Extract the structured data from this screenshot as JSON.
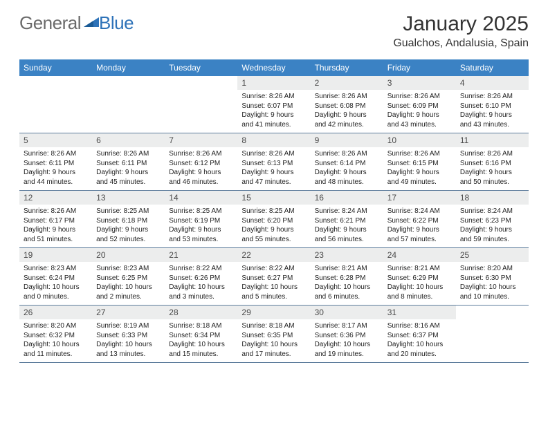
{
  "logo": {
    "word1": "General",
    "word2": "Blue"
  },
  "title": "January 2025",
  "location": "Gualchos, Andalusia, Spain",
  "colors": {
    "header_bar": "#3b82c4",
    "logo_gray": "#6a6a6a",
    "logo_blue": "#2d72b8",
    "daynum_bg": "#eceded",
    "week_border": "#5a7a9a"
  },
  "weekdays": [
    "Sunday",
    "Monday",
    "Tuesday",
    "Wednesday",
    "Thursday",
    "Friday",
    "Saturday"
  ],
  "layout": {
    "cols": 7,
    "rows": 5,
    "first_weekday_index": 3,
    "days_in_month": 31
  },
  "days": {
    "1": {
      "sunrise": "8:26 AM",
      "sunset": "6:07 PM",
      "daylight": "9 hours and 41 minutes."
    },
    "2": {
      "sunrise": "8:26 AM",
      "sunset": "6:08 PM",
      "daylight": "9 hours and 42 minutes."
    },
    "3": {
      "sunrise": "8:26 AM",
      "sunset": "6:09 PM",
      "daylight": "9 hours and 43 minutes."
    },
    "4": {
      "sunrise": "8:26 AM",
      "sunset": "6:10 PM",
      "daylight": "9 hours and 43 minutes."
    },
    "5": {
      "sunrise": "8:26 AM",
      "sunset": "6:11 PM",
      "daylight": "9 hours and 44 minutes."
    },
    "6": {
      "sunrise": "8:26 AM",
      "sunset": "6:11 PM",
      "daylight": "9 hours and 45 minutes."
    },
    "7": {
      "sunrise": "8:26 AM",
      "sunset": "6:12 PM",
      "daylight": "9 hours and 46 minutes."
    },
    "8": {
      "sunrise": "8:26 AM",
      "sunset": "6:13 PM",
      "daylight": "9 hours and 47 minutes."
    },
    "9": {
      "sunrise": "8:26 AM",
      "sunset": "6:14 PM",
      "daylight": "9 hours and 48 minutes."
    },
    "10": {
      "sunrise": "8:26 AM",
      "sunset": "6:15 PM",
      "daylight": "9 hours and 49 minutes."
    },
    "11": {
      "sunrise": "8:26 AM",
      "sunset": "6:16 PM",
      "daylight": "9 hours and 50 minutes."
    },
    "12": {
      "sunrise": "8:26 AM",
      "sunset": "6:17 PM",
      "daylight": "9 hours and 51 minutes."
    },
    "13": {
      "sunrise": "8:25 AM",
      "sunset": "6:18 PM",
      "daylight": "9 hours and 52 minutes."
    },
    "14": {
      "sunrise": "8:25 AM",
      "sunset": "6:19 PM",
      "daylight": "9 hours and 53 minutes."
    },
    "15": {
      "sunrise": "8:25 AM",
      "sunset": "6:20 PM",
      "daylight": "9 hours and 55 minutes."
    },
    "16": {
      "sunrise": "8:24 AM",
      "sunset": "6:21 PM",
      "daylight": "9 hours and 56 minutes."
    },
    "17": {
      "sunrise": "8:24 AM",
      "sunset": "6:22 PM",
      "daylight": "9 hours and 57 minutes."
    },
    "18": {
      "sunrise": "8:24 AM",
      "sunset": "6:23 PM",
      "daylight": "9 hours and 59 minutes."
    },
    "19": {
      "sunrise": "8:23 AM",
      "sunset": "6:24 PM",
      "daylight": "10 hours and 0 minutes."
    },
    "20": {
      "sunrise": "8:23 AM",
      "sunset": "6:25 PM",
      "daylight": "10 hours and 2 minutes."
    },
    "21": {
      "sunrise": "8:22 AM",
      "sunset": "6:26 PM",
      "daylight": "10 hours and 3 minutes."
    },
    "22": {
      "sunrise": "8:22 AM",
      "sunset": "6:27 PM",
      "daylight": "10 hours and 5 minutes."
    },
    "23": {
      "sunrise": "8:21 AM",
      "sunset": "6:28 PM",
      "daylight": "10 hours and 6 minutes."
    },
    "24": {
      "sunrise": "8:21 AM",
      "sunset": "6:29 PM",
      "daylight": "10 hours and 8 minutes."
    },
    "25": {
      "sunrise": "8:20 AM",
      "sunset": "6:30 PM",
      "daylight": "10 hours and 10 minutes."
    },
    "26": {
      "sunrise": "8:20 AM",
      "sunset": "6:32 PM",
      "daylight": "10 hours and 11 minutes."
    },
    "27": {
      "sunrise": "8:19 AM",
      "sunset": "6:33 PM",
      "daylight": "10 hours and 13 minutes."
    },
    "28": {
      "sunrise": "8:18 AM",
      "sunset": "6:34 PM",
      "daylight": "10 hours and 15 minutes."
    },
    "29": {
      "sunrise": "8:18 AM",
      "sunset": "6:35 PM",
      "daylight": "10 hours and 17 minutes."
    },
    "30": {
      "sunrise": "8:17 AM",
      "sunset": "6:36 PM",
      "daylight": "10 hours and 19 minutes."
    },
    "31": {
      "sunrise": "8:16 AM",
      "sunset": "6:37 PM",
      "daylight": "10 hours and 20 minutes."
    }
  },
  "labels": {
    "sunrise_prefix": "Sunrise: ",
    "sunset_prefix": "Sunset: ",
    "daylight_prefix": "Daylight: "
  }
}
